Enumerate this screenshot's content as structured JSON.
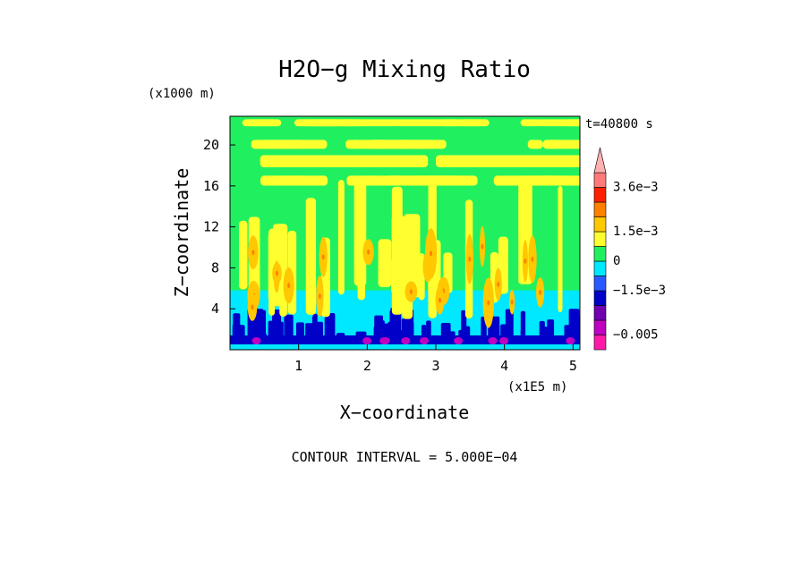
{
  "chart_data": {
    "type": "heatmap",
    "title": "H2O−g Mixing Ratio",
    "xlabel": "X−coordinate",
    "ylabel": "Z−coordinate",
    "x_unit": "(x1E5 m)",
    "y_unit": "(x1000 m)",
    "time_label": "t=40800 s",
    "footer": "CONTOUR INTERVAL = 5.000E−04",
    "xlim": [
      0,
      5.1
    ],
    "ylim": [
      0,
      22.8
    ],
    "x_ticks": [
      {
        "value": 1,
        "label": "1"
      },
      {
        "value": 2,
        "label": "2"
      },
      {
        "value": 3,
        "label": "3"
      },
      {
        "value": 4,
        "label": "4"
      },
      {
        "value": 5,
        "label": "5"
      }
    ],
    "y_ticks": [
      {
        "value": 4,
        "label": "4"
      },
      {
        "value": 8,
        "label": "8"
      },
      {
        "value": 12,
        "label": "12"
      },
      {
        "value": 16,
        "label": "16"
      },
      {
        "value": 20,
        "label": "20"
      }
    ],
    "colorbar": {
      "colors": [
        "#ff1aa8",
        "#c000c0",
        "#7000b0",
        "#0000c8",
        "#2a5aff",
        "#00e8ff",
        "#20f060",
        "#ffff30",
        "#ffc800",
        "#ff8000",
        "#ff2000",
        "#ff7a7a",
        "#ffb0b0"
      ],
      "labels": [
        {
          "value": "-0.005",
          "label": "−0.005"
        },
        {
          "value": "-1.5e-3",
          "label": "−1.5e−3"
        },
        {
          "value": "0",
          "label": "0"
        },
        {
          "value": "1.5e-3",
          "label": "1.5e−3"
        },
        {
          "value": "3.6e-3",
          "label": "3.6e−3"
        }
      ]
    },
    "field_description": {
      "background": "#20f060",
      "regions": [
        {
          "level": "#00e8ff",
          "z_range": [
            0,
            5.8
          ]
        },
        {
          "level": "#0000c8",
          "z_range": [
            0.5,
            3.5
          ]
        },
        {
          "level": "#ffff30",
          "z_range": [
            12,
            22.8
          ]
        },
        {
          "level": "#ff8000",
          "z_range": [
            2,
            11
          ]
        }
      ]
    }
  }
}
